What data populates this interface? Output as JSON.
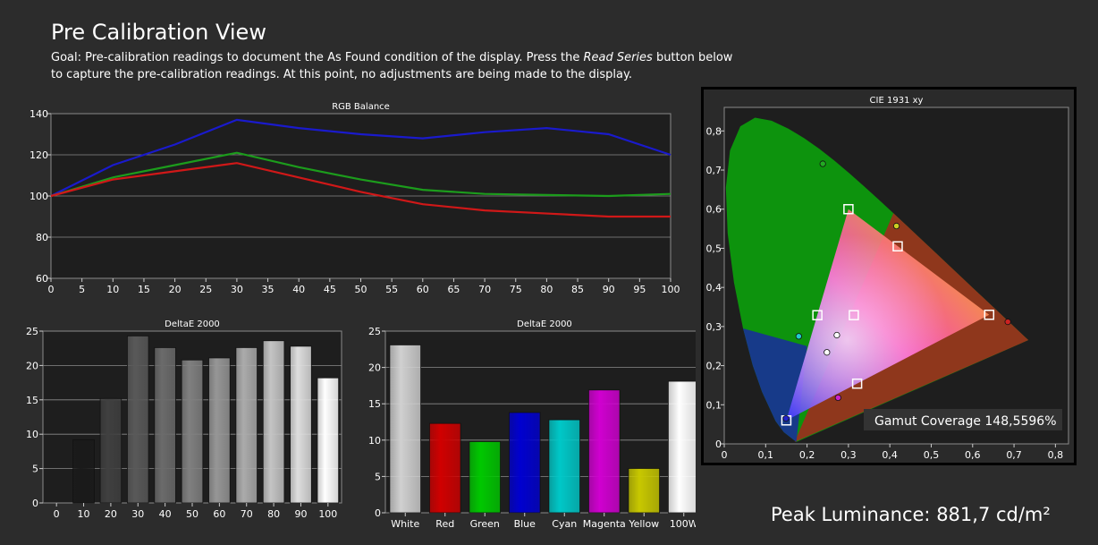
{
  "page": {
    "title": "Pre Calibration View",
    "goal_prefix": "Goal: Pre-calibration readings to document the As Found condition of the display. Press the ",
    "goal_emphasis": "Read Series",
    "goal_suffix": " button below to capture the pre-calibration readings. At this point, no adjustments are being made to the display.",
    "peak_label": "Peak Luminance:",
    "peak_value": "881,7 cd/m²"
  },
  "chart_data": [
    {
      "id": "rgb_balance",
      "type": "line",
      "title": "RGB Balance",
      "x": [
        0,
        10,
        20,
        30,
        40,
        50,
        60,
        70,
        80,
        90,
        100
      ],
      "xticks": [
        "0",
        "5",
        "10",
        "15",
        "20",
        "25",
        "30",
        "35",
        "40",
        "45",
        "50",
        "55",
        "60",
        "65",
        "70",
        "75",
        "80",
        "85",
        "90",
        "95",
        "100"
      ],
      "yticks": [
        "60",
        "80",
        "100",
        "120",
        "140"
      ],
      "ylim": [
        60,
        140
      ],
      "xlim": [
        0,
        100
      ],
      "grid": true,
      "series": [
        {
          "color": "#1a1acc",
          "values": [
            100,
            115,
            125,
            137,
            133,
            130,
            128,
            131,
            133,
            130,
            120
          ]
        },
        {
          "color": "#1c9c1c",
          "values": [
            100,
            109,
            115,
            121,
            114,
            108,
            103,
            101,
            100.5,
            100,
            101
          ]
        },
        {
          "color": "#d01818",
          "values": [
            100,
            108,
            112,
            116,
            109,
            102,
            96,
            93,
            91.5,
            90,
            90
          ]
        }
      ]
    },
    {
      "id": "delta_e_grayscale",
      "type": "bar",
      "title": "DeltaE 2000",
      "categories": [
        "0",
        "10",
        "20",
        "30",
        "40",
        "50",
        "60",
        "70",
        "80",
        "90",
        "100"
      ],
      "values": [
        0,
        9.2,
        15.2,
        24.3,
        22.6,
        20.8,
        21.1,
        22.6,
        23.6,
        22.8,
        18.2
      ],
      "colors": [
        "#000000",
        "#1a1a1a",
        "#404040",
        "#595959",
        "#6b6b6b",
        "#808080",
        "#969696",
        "#ababab",
        "#c4c4c4",
        "#dedede",
        "#ffffff"
      ],
      "yticks": [
        "0",
        "5",
        "10",
        "15",
        "20",
        "25"
      ],
      "ylim": [
        0,
        25
      ]
    },
    {
      "id": "delta_e_colors",
      "type": "bar",
      "title": "DeltaE 2000",
      "categories": [
        "White",
        "Red",
        "Green",
        "Blue",
        "Cyan",
        "Magenta",
        "Yellow",
        "100W"
      ],
      "values": [
        23.1,
        12.3,
        9.8,
        13.8,
        12.8,
        16.9,
        6.1,
        18.1
      ],
      "colors": [
        "#d0d0d0",
        "#d00000",
        "#00c800",
        "#0000d0",
        "#00c8c8",
        "#d000d0",
        "#c8c800",
        "#ffffff"
      ],
      "yticks": [
        "0",
        "5",
        "10",
        "15",
        "20",
        "25"
      ],
      "ylim": [
        0,
        25
      ]
    },
    {
      "id": "cie_1931",
      "type": "scatter",
      "title": "CIE 1931 xy",
      "xticks": [
        "0",
        "0,1",
        "0,2",
        "0,3",
        "0,4",
        "0,5",
        "0,6",
        "0,7",
        "0,8"
      ],
      "yticks": [
        "0",
        "0,1",
        "0,2",
        "0,3",
        "0,4",
        "0,5",
        "0,6",
        "0,7",
        "0,8"
      ],
      "xlim": [
        0,
        0.8
      ],
      "ylim": [
        0,
        0.8
      ],
      "target_gamut": [
        [
          0.64,
          0.33
        ],
        [
          0.3,
          0.6
        ],
        [
          0.15,
          0.06
        ]
      ],
      "targets": [
        {
          "x": 0.64,
          "y": 0.33
        },
        {
          "x": 0.3,
          "y": 0.6
        },
        {
          "x": 0.15,
          "y": 0.06
        },
        {
          "x": 0.225,
          "y": 0.329
        },
        {
          "x": 0.321,
          "y": 0.154
        },
        {
          "x": 0.419,
          "y": 0.505
        },
        {
          "x": 0.313,
          "y": 0.329
        }
      ],
      "measured": [
        {
          "x": 0.685,
          "y": 0.312,
          "color": "#cc2222"
        },
        {
          "x": 0.238,
          "y": 0.716,
          "color": "#22aa22"
        },
        {
          "x": 0.149,
          "y": 0.065,
          "color": "#2222cc"
        },
        {
          "x": 0.18,
          "y": 0.275,
          "color": "#22cccc"
        },
        {
          "x": 0.275,
          "y": 0.118,
          "color": "#cc22cc"
        },
        {
          "x": 0.416,
          "y": 0.557,
          "color": "#cccc22"
        },
        {
          "x": 0.272,
          "y": 0.278,
          "color": "#ffffff"
        },
        {
          "x": 0.248,
          "y": 0.234,
          "color": "#ffffff"
        }
      ],
      "annotation": "Gamut Coverage 148,5596%"
    }
  ]
}
